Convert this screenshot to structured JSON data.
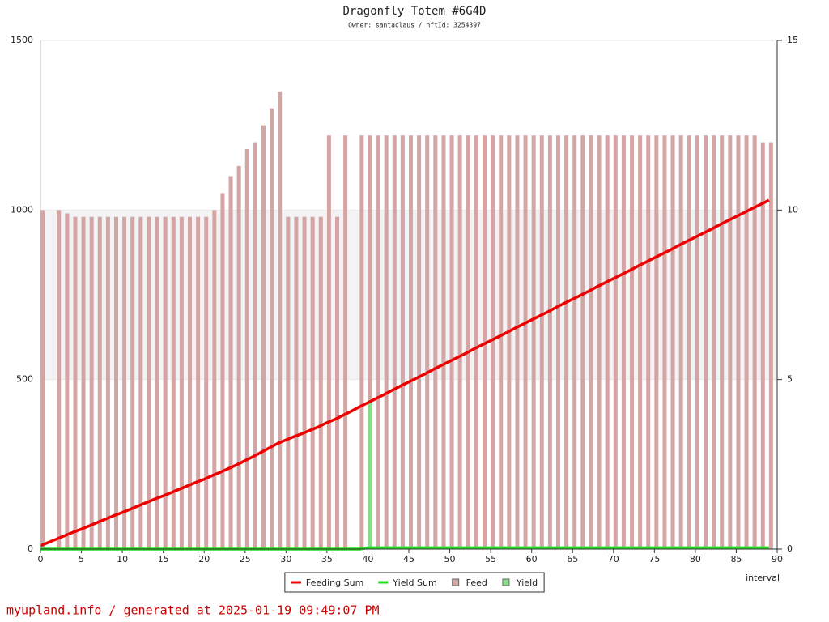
{
  "chart_data": {
    "type": "combo",
    "title": "Dragonfly Totem #6G4D",
    "subtitle": "Owner: santaclaus / nftId: 3254397",
    "x_label": "interval",
    "footer": "myupland.info / generated at 2025-01-19 09:49:07 PM",
    "x": [
      0,
      1,
      2,
      3,
      4,
      5,
      6,
      7,
      8,
      9,
      10,
      11,
      12,
      13,
      14,
      15,
      16,
      17,
      18,
      19,
      20,
      21,
      22,
      23,
      24,
      25,
      26,
      27,
      28,
      29,
      30,
      31,
      32,
      33,
      34,
      35,
      36,
      37,
      38,
      39,
      40,
      41,
      42,
      43,
      44,
      45,
      46,
      47,
      48,
      49,
      50,
      51,
      52,
      53,
      54,
      55,
      56,
      57,
      58,
      59,
      60,
      61,
      62,
      63,
      64,
      65,
      66,
      67,
      68,
      69,
      70,
      71,
      72,
      73,
      74,
      75,
      76,
      77,
      78,
      79,
      80,
      81,
      82,
      83,
      84,
      85,
      86,
      87,
      88,
      89
    ],
    "xlim": [
      0,
      90
    ],
    "xticks": [
      0,
      5,
      10,
      15,
      20,
      25,
      30,
      35,
      40,
      45,
      50,
      55,
      60,
      65,
      70,
      75,
      80,
      85,
      90
    ],
    "ylim": [
      0,
      1500
    ],
    "yticks": [
      0,
      500,
      1000,
      1500
    ],
    "y2lim": [
      0,
      15
    ],
    "y2ticks": [
      0,
      5,
      10,
      15
    ],
    "shaded_range": [
      500,
      1000
    ],
    "legend": "bottom",
    "series": [
      {
        "name": "Feeding Sum",
        "type": "line",
        "axis": "y2",
        "color": "#ee0000",
        "values": [
          0.1,
          0.2,
          0.3,
          0.4,
          0.5,
          0.59,
          0.69,
          0.79,
          0.89,
          0.99,
          1.08,
          1.18,
          1.28,
          1.38,
          1.48,
          1.57,
          1.67,
          1.77,
          1.87,
          1.97,
          2.06,
          2.17,
          2.27,
          2.38,
          2.49,
          2.61,
          2.73,
          2.86,
          2.99,
          3.12,
          3.22,
          3.32,
          3.41,
          3.51,
          3.61,
          3.73,
          3.83,
          3.95,
          4.07,
          4.2,
          4.32,
          4.44,
          4.56,
          4.69,
          4.81,
          4.93,
          5.05,
          5.17,
          5.3,
          5.42,
          5.54,
          5.66,
          5.78,
          5.91,
          6.03,
          6.15,
          6.27,
          6.39,
          6.52,
          6.64,
          6.76,
          6.88,
          7.0,
          7.13,
          7.25,
          7.37,
          7.49,
          7.61,
          7.74,
          7.86,
          7.98,
          8.1,
          8.22,
          8.35,
          8.47,
          8.59,
          8.71,
          8.83,
          8.96,
          9.08,
          9.2,
          9.32,
          9.44,
          9.57,
          9.69,
          9.81,
          9.93,
          10.05,
          10.17,
          10.29
        ]
      },
      {
        "name": "Yield Sum",
        "type": "line",
        "axis": "y2",
        "color": "#22dd22",
        "values": [
          0,
          0,
          0,
          0,
          0,
          0,
          0,
          0,
          0,
          0,
          0,
          0,
          0,
          0,
          0,
          0,
          0,
          0,
          0,
          0,
          0,
          0,
          0,
          0,
          0,
          0,
          0,
          0,
          0,
          0,
          0,
          0,
          0,
          0,
          0,
          0,
          0,
          0,
          0,
          0,
          0.04,
          0.04,
          0.04,
          0.04,
          0.04,
          0.04,
          0.04,
          0.04,
          0.04,
          0.04,
          0.04,
          0.04,
          0.04,
          0.04,
          0.04,
          0.04,
          0.04,
          0.04,
          0.04,
          0.04,
          0.04,
          0.04,
          0.04,
          0.04,
          0.04,
          0.04,
          0.04,
          0.04,
          0.04,
          0.04,
          0.04,
          0.04,
          0.04,
          0.04,
          0.04,
          0.04,
          0.04,
          0.04,
          0.04,
          0.04,
          0.04,
          0.04,
          0.04,
          0.04,
          0.04,
          0.04,
          0.04,
          0.04,
          0.04,
          0.04
        ]
      },
      {
        "name": "Feed",
        "type": "bar",
        "color": "#d4a5a5",
        "values": [
          1000,
          null,
          1000,
          990,
          980,
          980,
          980,
          980,
          980,
          980,
          980,
          980,
          980,
          980,
          980,
          980,
          980,
          980,
          980,
          980,
          980,
          1000,
          1050,
          1100,
          1130,
          1180,
          1200,
          1250,
          1300,
          1350,
          980,
          980,
          980,
          980,
          980,
          1220,
          980,
          1220,
          null,
          1220,
          1220,
          1220,
          1220,
          1220,
          1220,
          1220,
          1220,
          1220,
          1220,
          1220,
          1220,
          1220,
          1220,
          1220,
          1220,
          1220,
          1220,
          1220,
          1220,
          1220,
          1220,
          1220,
          1220,
          1220,
          1220,
          1220,
          1220,
          1220,
          1220,
          1220,
          1220,
          1220,
          1220,
          1220,
          1220,
          1220,
          1220,
          1220,
          1220,
          1220,
          1220,
          1220,
          1220,
          1220,
          1220,
          1220,
          1220,
          1220,
          1200,
          1200
        ]
      },
      {
        "name": "Yield",
        "type": "bar",
        "color": "#88dd88",
        "values": [
          null,
          null,
          null,
          null,
          null,
          null,
          null,
          null,
          null,
          null,
          null,
          null,
          null,
          null,
          null,
          null,
          null,
          null,
          null,
          null,
          null,
          null,
          null,
          null,
          null,
          null,
          null,
          null,
          null,
          null,
          null,
          null,
          null,
          null,
          null,
          null,
          null,
          null,
          null,
          null,
          440,
          null,
          null,
          null,
          null,
          null,
          null,
          null,
          null,
          null,
          null,
          null,
          null,
          null,
          null,
          null,
          null,
          null,
          null,
          null,
          null,
          null,
          null,
          null,
          null,
          null,
          null,
          null,
          null,
          null,
          null,
          null,
          null,
          null,
          null,
          null,
          null,
          null,
          null,
          null,
          null,
          null,
          null,
          null,
          null,
          null,
          null,
          null,
          null,
          null
        ]
      }
    ]
  }
}
